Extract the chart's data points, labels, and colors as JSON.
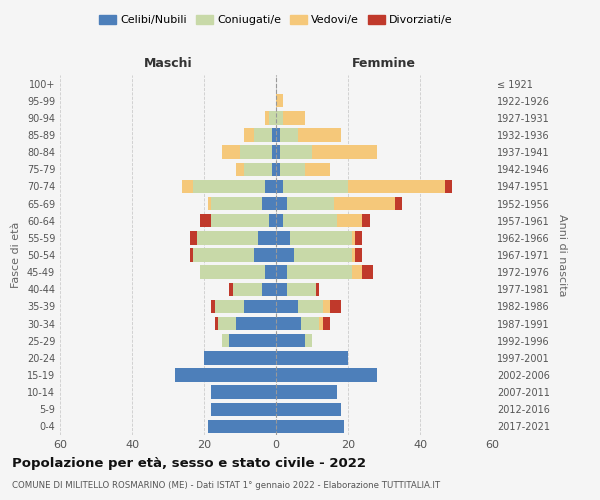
{
  "age_groups": [
    "0-4",
    "5-9",
    "10-14",
    "15-19",
    "20-24",
    "25-29",
    "30-34",
    "35-39",
    "40-44",
    "45-49",
    "50-54",
    "55-59",
    "60-64",
    "65-69",
    "70-74",
    "75-79",
    "80-84",
    "85-89",
    "90-94",
    "95-99",
    "100+"
  ],
  "birth_years": [
    "2017-2021",
    "2012-2016",
    "2007-2011",
    "2002-2006",
    "1997-2001",
    "1992-1996",
    "1987-1991",
    "1982-1986",
    "1977-1981",
    "1972-1976",
    "1967-1971",
    "1962-1966",
    "1957-1961",
    "1952-1956",
    "1947-1951",
    "1942-1946",
    "1937-1941",
    "1932-1936",
    "1927-1931",
    "1922-1926",
    "≤ 1921"
  ],
  "maschi": {
    "celibi": [
      19,
      18,
      18,
      28,
      20,
      13,
      11,
      9,
      4,
      3,
      6,
      5,
      2,
      4,
      3,
      1,
      1,
      1,
      0,
      0,
      0
    ],
    "coniugati": [
      0,
      0,
      0,
      0,
      0,
      2,
      5,
      8,
      8,
      18,
      17,
      17,
      16,
      14,
      20,
      8,
      9,
      5,
      2,
      0,
      0
    ],
    "vedovi": [
      0,
      0,
      0,
      0,
      0,
      0,
      0,
      0,
      0,
      0,
      0,
      0,
      0,
      1,
      3,
      2,
      5,
      3,
      1,
      0,
      0
    ],
    "divorziati": [
      0,
      0,
      0,
      0,
      0,
      0,
      1,
      1,
      1,
      0,
      1,
      2,
      3,
      0,
      0,
      0,
      0,
      0,
      0,
      0,
      0
    ]
  },
  "femmine": {
    "nubili": [
      19,
      18,
      17,
      28,
      20,
      8,
      7,
      6,
      3,
      3,
      5,
      4,
      2,
      3,
      2,
      1,
      1,
      1,
      0,
      0,
      0
    ],
    "coniugate": [
      0,
      0,
      0,
      0,
      0,
      2,
      5,
      7,
      8,
      18,
      16,
      17,
      15,
      13,
      18,
      7,
      9,
      5,
      2,
      0,
      0
    ],
    "vedove": [
      0,
      0,
      0,
      0,
      0,
      0,
      1,
      2,
      0,
      3,
      1,
      1,
      7,
      17,
      27,
      7,
      18,
      12,
      6,
      2,
      0
    ],
    "divorziate": [
      0,
      0,
      0,
      0,
      0,
      0,
      2,
      3,
      1,
      3,
      2,
      2,
      2,
      2,
      2,
      0,
      0,
      0,
      0,
      0,
      0
    ]
  },
  "colors": {
    "celibi_nubili": "#4d7fba",
    "coniugati": "#c8d9a8",
    "vedovi": "#f5c87a",
    "divorziati": "#c0392b"
  },
  "title": "Popolazione per età, sesso e stato civile - 2022",
  "subtitle": "COMUNE DI MILITELLO ROSMARINO (ME) - Dati ISTAT 1° gennaio 2022 - Elaborazione TUTTITALIA.IT",
  "xlabel_left": "Maschi",
  "xlabel_right": "Femmine",
  "ylabel_left": "Fasce di età",
  "ylabel_right": "Anni di nascita",
  "xlim": 60,
  "background_color": "#f5f5f5"
}
